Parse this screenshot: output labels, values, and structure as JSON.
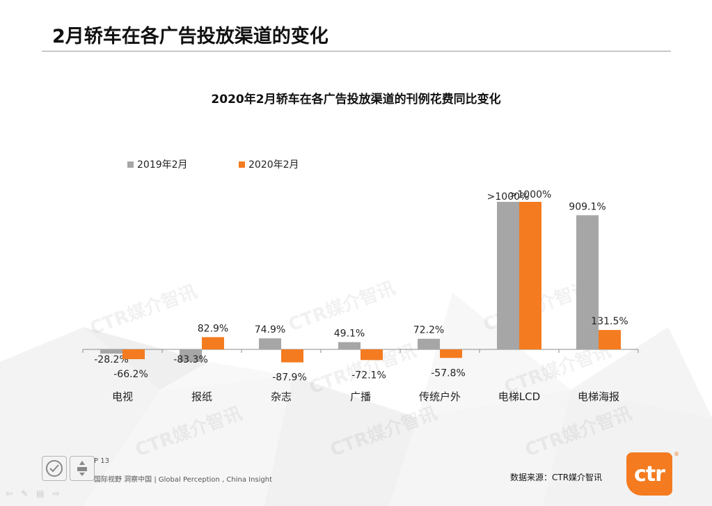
{
  "slide": {
    "title": "2月轿车在各广告投放渠道的变化"
  },
  "chart_data": {
    "type": "bar",
    "title": "2020年2月轿车在各广告投放渠道的刊例花费同比变化",
    "categories": [
      "电视",
      "报纸",
      "杂志",
      "广播",
      "传统户外",
      "电梯LCD",
      "电梯海报"
    ],
    "series": [
      {
        "name": "2019年2月",
        "color": "#a6a6a6",
        "values": [
          -28.2,
          -83.3,
          74.9,
          49.1,
          72.2,
          1000,
          909.1
        ],
        "labels": [
          "-28.2%",
          "-83.3%",
          "74.9%",
          "49.1%",
          "72.2%",
          ">1000%",
          "909.1%"
        ]
      },
      {
        "name": "2020年2月",
        "color": "#f47b20",
        "values": [
          -66.2,
          82.9,
          -87.9,
          -72.1,
          -57.8,
          1000,
          131.5
        ],
        "labels": [
          "-66.2%",
          "82.9%",
          "-87.9%",
          "-72.1%",
          "-57.8%",
          ">1000%",
          "131.5%"
        ]
      }
    ],
    "xlabel": "",
    "ylabel": "",
    "grid": false,
    "legend": "top-left",
    "ylim": [
      -150,
      1000
    ]
  },
  "watermark": "CTR媒介智讯",
  "footer": {
    "page": "P 13",
    "slogan": "国际视野  洞察中国 |  Global Perception , China Insight",
    "source": "数据来源：CTR媒介智讯",
    "brand": "ctr",
    "brand_reg": "®"
  }
}
